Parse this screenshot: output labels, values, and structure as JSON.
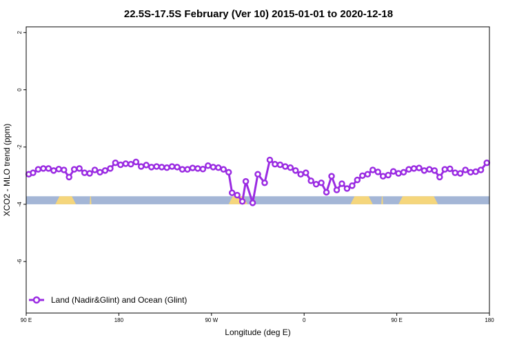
{
  "chart_data": {
    "type": "line",
    "title": "22.5S-17.5S February (Ver 10)   2015-01-01 to 2020-12-18",
    "xlabel": "Longitude (deg E)",
    "ylabel": "XCO2 - MLO trend (ppm)",
    "xlim": [
      -90,
      180
    ],
    "ylim": [
      -7.8,
      2.2
    ],
    "x_ticks": [
      -90,
      -36,
      18,
      72,
      126,
      180
    ],
    "x_tick_labels": [
      "90 E",
      "180",
      "90 W",
      "0",
      "90 E",
      "180"
    ],
    "y_ticks": [
      2,
      0,
      -2,
      -4,
      -6
    ],
    "y_tick_labels": [
      "2",
      "0",
      "-2",
      "-4",
      "-6"
    ],
    "grid": false,
    "legend_position": "bottom-left",
    "colors": {
      "series": "#9a2be2",
      "ocean": "#a4b6d6",
      "land": "#f5d67c"
    },
    "surface_strip": {
      "y_range": [
        -4.0,
        -3.72
      ],
      "land_segments": [
        [
          -73,
          -61
        ],
        [
          -53,
          -52
        ],
        [
          28,
          39
        ],
        [
          99,
          112
        ],
        [
          117,
          118
        ],
        [
          127,
          150
        ]
      ]
    },
    "series": [
      {
        "name": "Land (Nadir&Glint) and Ocean (Glint)",
        "x": [
          -88.5,
          -86,
          -83,
          -80,
          -77,
          -74,
          -71,
          -68,
          -65,
          -62,
          -59,
          -56,
          -53,
          -50,
          -47,
          -44,
          -41,
          -38,
          -35,
          -32,
          -29,
          -26,
          -23,
          -20,
          -17,
          -14,
          -11,
          -8,
          -5,
          -2,
          1,
          4,
          7,
          10,
          13,
          16,
          19,
          22,
          25,
          28,
          30,
          33,
          36,
          38,
          42,
          45,
          49,
          52,
          55,
          58,
          61,
          64,
          67,
          70,
          73,
          76,
          79,
          82,
          85,
          88,
          91,
          94,
          97,
          100,
          103,
          106,
          109,
          112,
          115,
          118,
          121,
          124,
          127,
          130,
          133,
          136,
          139,
          142,
          145,
          148,
          151,
          154,
          157,
          160,
          163,
          166,
          169,
          172,
          175,
          178.5
        ],
        "values": [
          -2.95,
          -2.9,
          -2.78,
          -2.75,
          -2.75,
          -2.82,
          -2.77,
          -2.8,
          -3.05,
          -2.78,
          -2.75,
          -2.9,
          -2.92,
          -2.8,
          -2.88,
          -2.82,
          -2.75,
          -2.55,
          -2.62,
          -2.58,
          -2.6,
          -2.52,
          -2.68,
          -2.63,
          -2.7,
          -2.68,
          -2.7,
          -2.72,
          -2.68,
          -2.7,
          -2.78,
          -2.78,
          -2.73,
          -2.75,
          -2.77,
          -2.65,
          -2.7,
          -2.72,
          -2.78,
          -2.88,
          -3.6,
          -3.68,
          -3.9,
          -3.2,
          -3.95,
          -2.95,
          -3.25,
          -2.45,
          -2.6,
          -2.62,
          -2.68,
          -2.72,
          -2.82,
          -2.95,
          -2.9,
          -3.18,
          -3.3,
          -3.25,
          -3.58,
          -3.02,
          -3.5,
          -3.28,
          -3.45,
          -3.35,
          -3.15,
          -3.0,
          -2.95,
          -2.8,
          -2.87,
          -3.02,
          -2.98,
          -2.85,
          -2.92,
          -2.88,
          -2.78,
          -2.75,
          -2.73,
          -2.82,
          -2.78,
          -2.82,
          -3.05,
          -2.78,
          -2.76,
          -2.9,
          -2.92,
          -2.8,
          -2.88,
          -2.86,
          -2.8,
          -2.55
        ]
      }
    ]
  }
}
